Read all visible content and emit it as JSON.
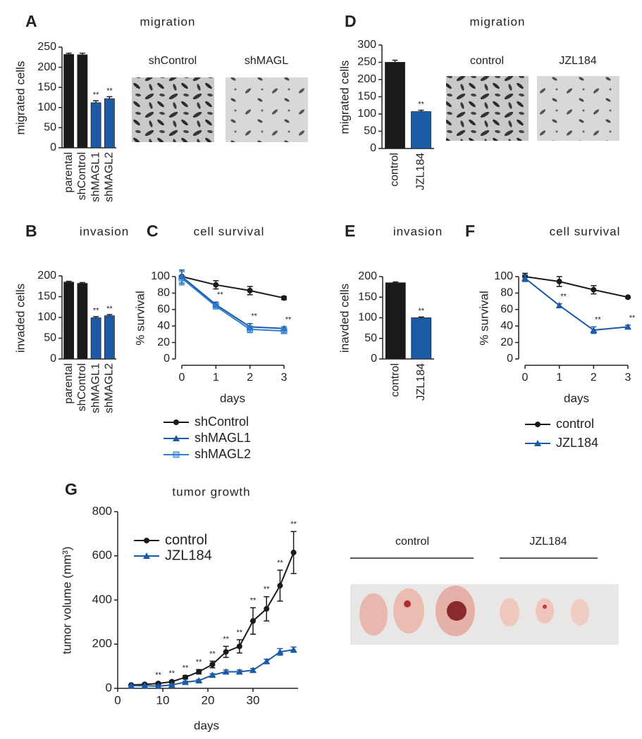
{
  "chart_data": [
    {
      "type": "bar",
      "panel": "A",
      "title": "migration",
      "ylabel": "migrated cells",
      "categories": [
        "parental",
        "shControl",
        "shMAGL1",
        "shMAGL2"
      ],
      "values": [
        232,
        231,
        112,
        122
      ],
      "errors": [
        3,
        4,
        5,
        5
      ],
      "significance": [
        null,
        null,
        "**",
        "**"
      ],
      "colors": [
        "#1a1a1a",
        "#1a1a1a",
        "#1c5aa6",
        "#1c5aa6"
      ],
      "ylim": [
        0,
        250
      ],
      "yticks": [
        0,
        50,
        100,
        150,
        200,
        250
      ],
      "images": [
        "shControl",
        "shMAGL"
      ]
    },
    {
      "type": "bar",
      "panel": "D",
      "title": "migration",
      "ylabel": "migrated cells",
      "categories": [
        "control",
        "JZL184"
      ],
      "values": [
        250,
        107
      ],
      "errors": [
        6,
        4
      ],
      "significance": [
        null,
        "**"
      ],
      "colors": [
        "#1a1a1a",
        "#1c5aa6"
      ],
      "ylim": [
        0,
        300
      ],
      "yticks": [
        0,
        50,
        100,
        150,
        200,
        250,
        300
      ],
      "images": [
        "control",
        "JZL184"
      ]
    },
    {
      "type": "bar",
      "panel": "B",
      "title": "invasion",
      "ylabel": "invaded cells",
      "categories": [
        "parental",
        "shControl",
        "shMAGL1",
        "shMAGL2"
      ],
      "values": [
        185,
        182,
        99,
        104
      ],
      "errors": [
        2,
        2,
        3,
        3
      ],
      "significance": [
        null,
        null,
        "**",
        "**"
      ],
      "colors": [
        "#1a1a1a",
        "#1a1a1a",
        "#1c5aa6",
        "#1c5aa6"
      ],
      "ylim": [
        0,
        200
      ],
      "yticks": [
        0,
        50,
        100,
        150,
        200
      ]
    },
    {
      "type": "line",
      "panel": "C",
      "title": "cell survival",
      "xlabel": "days",
      "ylabel": "% survival",
      "x": [
        0,
        1,
        2,
        3
      ],
      "xlim": [
        0,
        3
      ],
      "xticks": [
        0,
        1,
        2,
        3
      ],
      "ylim": [
        0,
        100
      ],
      "yticks": [
        0,
        20,
        40,
        60,
        80,
        100
      ],
      "series": [
        {
          "name": "shControl",
          "color": "#1a1a1a",
          "marker": "circle",
          "values": [
            100,
            90,
            83,
            74
          ],
          "errors": [
            8,
            5,
            5,
            2
          ]
        },
        {
          "name": "shMAGL1",
          "color": "#1c5aa6",
          "marker": "triangle",
          "values": [
            100,
            66,
            39,
            37
          ],
          "errors": [
            8,
            3,
            4,
            2
          ],
          "significance": [
            null,
            "**",
            "**",
            "**"
          ]
        },
        {
          "name": "shMAGL2",
          "color": "#2f7fd0",
          "marker": "square",
          "values": [
            98,
            64,
            36,
            34
          ],
          "errors": [
            8,
            3,
            4,
            2
          ]
        }
      ]
    },
    {
      "type": "bar",
      "panel": "E",
      "title": "invasion",
      "ylabel": "inavded cells",
      "categories": [
        "control",
        "JZL184"
      ],
      "values": [
        185,
        100
      ],
      "errors": [
        2,
        2
      ],
      "significance": [
        null,
        "**"
      ],
      "colors": [
        "#1a1a1a",
        "#1c5aa6"
      ],
      "ylim": [
        0,
        200
      ],
      "yticks": [
        0,
        50,
        100,
        150,
        200
      ]
    },
    {
      "type": "line",
      "panel": "F",
      "title": "cell survival",
      "xlabel": "days",
      "ylabel": "% survival",
      "x": [
        0,
        1,
        2,
        3
      ],
      "xlim": [
        0,
        3
      ],
      "xticks": [
        0,
        1,
        2,
        3
      ],
      "ylim": [
        0,
        100
      ],
      "yticks": [
        0,
        20,
        40,
        60,
        80,
        100
      ],
      "series": [
        {
          "name": "control",
          "color": "#1a1a1a",
          "marker": "circle",
          "values": [
            100,
            94,
            84,
            75
          ],
          "errors": [
            4,
            6,
            5,
            1
          ]
        },
        {
          "name": "JZL184",
          "color": "#1c5aa6",
          "marker": "triangle",
          "values": [
            98,
            65,
            35,
            39
          ],
          "errors": [
            4,
            2,
            4,
            2
          ],
          "significance": [
            null,
            "**",
            "**",
            "**"
          ]
        }
      ]
    },
    {
      "type": "line",
      "panel": "G",
      "title": "tumor growth",
      "xlabel": "days",
      "ylabel": "tumor volume (mm³)",
      "x": [
        3,
        6,
        9,
        12,
        15,
        18,
        21,
        24,
        27,
        30,
        33,
        36,
        39
      ],
      "xlim": [
        0,
        40
      ],
      "xticks": [
        0,
        10,
        20,
        30
      ],
      "ylim": [
        0,
        800
      ],
      "yticks": [
        0,
        200,
        400,
        600,
        800
      ],
      "series": [
        {
          "name": "control",
          "color": "#1a1a1a",
          "marker": "circle",
          "values": [
            15,
            18,
            22,
            30,
            50,
            75,
            108,
            165,
            190,
            305,
            360,
            465,
            615
          ],
          "errors": [
            3,
            3,
            4,
            5,
            8,
            10,
            15,
            25,
            30,
            60,
            55,
            70,
            95
          ],
          "significance": [
            null,
            null,
            "**",
            "**",
            "**",
            "**",
            "**",
            "**",
            "**",
            "**",
            "**",
            "**",
            "**"
          ]
        },
        {
          "name": "JZL184",
          "color": "#1c5aa6",
          "marker": "triangle",
          "values": [
            12,
            12,
            10,
            15,
            28,
            35,
            60,
            75,
            75,
            82,
            122,
            165,
            175
          ],
          "errors": [
            2,
            2,
            2,
            3,
            4,
            5,
            6,
            8,
            8,
            8,
            10,
            15,
            12
          ]
        }
      ],
      "images": [
        "control",
        "JZL184"
      ]
    }
  ]
}
